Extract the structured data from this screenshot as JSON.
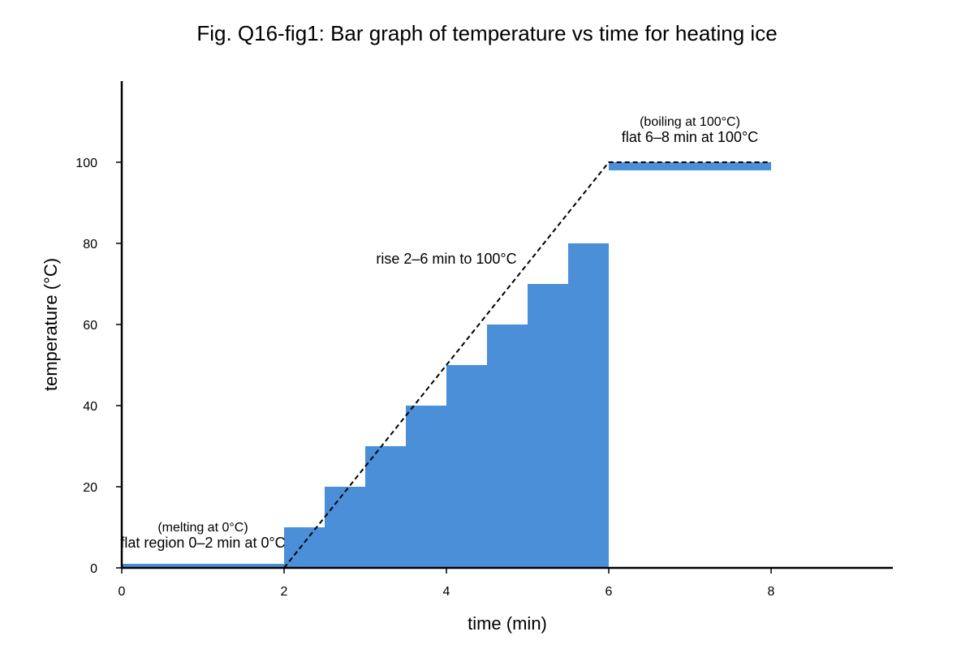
{
  "chart_data": {
    "type": "bar",
    "title": "Fig. Q16-fig1: Bar graph of temperature vs time for heating ice",
    "xlabel": "time (min)",
    "ylabel": "temperature (°C)",
    "xlim": [
      0,
      9.5
    ],
    "ylim": [
      0,
      120
    ],
    "x_ticks": [
      0,
      2,
      4,
      6,
      8
    ],
    "y_ticks": [
      0,
      20,
      40,
      60,
      80,
      100
    ],
    "x_tick_labels": [
      "0",
      "2",
      "4",
      "6",
      "8"
    ],
    "y_tick_labels": [
      "0",
      "20",
      "40",
      "60",
      "80",
      "100"
    ],
    "grid": false,
    "bar_color": "#4a8fd8",
    "bars": [
      {
        "x_start": 0,
        "x_end": 2,
        "y_bottom": 0,
        "y_top": 1
      },
      {
        "x_start": 2,
        "x_end": 2.5,
        "y_bottom": 0,
        "y_top": 10
      },
      {
        "x_start": 2.5,
        "x_end": 3,
        "y_bottom": 0,
        "y_top": 20
      },
      {
        "x_start": 3,
        "x_end": 3.5,
        "y_bottom": 0,
        "y_top": 30
      },
      {
        "x_start": 3.5,
        "x_end": 4,
        "y_bottom": 0,
        "y_top": 40
      },
      {
        "x_start": 4,
        "x_end": 4.5,
        "y_bottom": 0,
        "y_top": 50
      },
      {
        "x_start": 4.5,
        "x_end": 5,
        "y_bottom": 0,
        "y_top": 60
      },
      {
        "x_start": 5,
        "x_end": 5.5,
        "y_bottom": 0,
        "y_top": 70
      },
      {
        "x_start": 5.5,
        "x_end": 6,
        "y_bottom": 0,
        "y_top": 80
      },
      {
        "x_start": 6,
        "x_end": 8,
        "y_bottom": 98,
        "y_top": 100
      }
    ],
    "reference_line": {
      "style": "dashed",
      "color": "#000000",
      "x": [
        0,
        2,
        6,
        8
      ],
      "y": [
        0,
        0,
        100,
        100
      ]
    },
    "annotations": [
      {
        "text": "(melting at 0°C)",
        "x": 1,
        "y": 9,
        "size": "small"
      },
      {
        "text": "flat region 0–2 min at 0°C",
        "x": 1,
        "y": 5,
        "size": "big"
      },
      {
        "text": "rise 2–6 min to 100°C",
        "x": 4,
        "y": 75,
        "size": "big"
      },
      {
        "text": "(boiling at 100°C)",
        "x": 7,
        "y": 109,
        "size": "small"
      },
      {
        "text": "flat 6–8 min at 100°C",
        "x": 7,
        "y": 105,
        "size": "big"
      }
    ]
  }
}
